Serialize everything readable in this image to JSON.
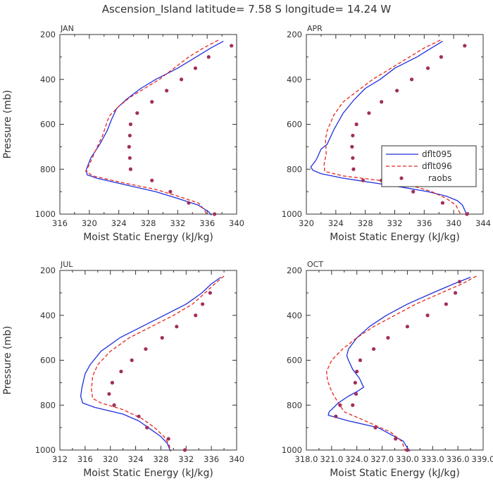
{
  "title": "Ascension_Island  latitude= 7.58 S longitude= 14.24 W",
  "colors": {
    "model1": "#1f2fdd",
    "model2": "#e8261c",
    "obs": "#a0305a",
    "axis": "#333333"
  },
  "chart_data": [
    {
      "type": "line",
      "panel": "JAN",
      "xlabel": "Moist Static Energy (kJ/kg)",
      "ylabel": "Pressure (mb)",
      "xlim": [
        316,
        340
      ],
      "ylim": [
        200,
        1000
      ],
      "xticks": [
        316,
        320,
        324,
        328,
        332,
        336,
        340
      ],
      "xtick_labels": [
        "316",
        "320",
        "324",
        "328",
        "332",
        "336",
        "340"
      ],
      "yticks": [
        200,
        400,
        600,
        800,
        1000
      ],
      "series": [
        {
          "name": "dflt095",
          "style": "solid",
          "x": [
            338.2,
            336.5,
            334.5,
            332.0,
            329.0,
            327.0,
            325.0,
            323.7,
            323.0,
            322.4,
            321.4,
            320.2,
            319.6,
            319.7,
            321.0,
            325.0,
            329.0,
            332.0,
            334.8,
            336.2,
            336.6
          ],
          "y": [
            230,
            260,
            300,
            350,
            400,
            440,
            490,
            530,
            580,
            630,
            690,
            750,
            800,
            825,
            840,
            870,
            900,
            930,
            960,
            990,
            1005
          ]
        },
        {
          "name": "dflt096",
          "style": "dashed",
          "x": [
            337.5,
            335.5,
            333.5,
            331.5,
            329.5,
            327.5,
            325.5,
            324.0,
            322.8,
            322.5,
            321.8,
            320.8,
            320.0,
            319.5,
            320.5,
            324.5,
            329.0,
            332.0,
            334.8,
            335.6,
            336.0
          ],
          "y": [
            225,
            260,
            300,
            350,
            400,
            440,
            480,
            520,
            560,
            580,
            650,
            720,
            780,
            810,
            830,
            860,
            890,
            920,
            950,
            980,
            1005
          ]
        },
        {
          "name": "raobs",
          "style": "markers",
          "x": [
            339.3,
            336.2,
            334.4,
            332.5,
            330.5,
            328.5,
            326.5,
            325.6,
            325.5,
            325.4,
            325.5,
            325.6,
            328.5,
            331.0,
            333.5,
            337.0
          ],
          "y": [
            250,
            300,
            350,
            400,
            450,
            500,
            550,
            600,
            650,
            700,
            750,
            800,
            850,
            900,
            950,
            1000
          ]
        }
      ]
    },
    {
      "type": "line",
      "panel": "APR",
      "xlabel": "Moist Static Energy (kJ/kg)",
      "ylabel": "",
      "xlim": [
        320,
        344
      ],
      "ylim": [
        200,
        1000
      ],
      "xticks": [
        320,
        324,
        328,
        332,
        336,
        340,
        344
      ],
      "xtick_labels": [
        "320",
        "324",
        "328",
        "332",
        "336",
        "340",
        "344"
      ],
      "yticks": [
        200,
        400,
        600,
        800,
        1000
      ],
      "series": [
        {
          "name": "dflt095",
          "style": "solid",
          "x": [
            338.5,
            337.0,
            335.0,
            332.0,
            330.0,
            328.0,
            326.5,
            325.0,
            323.8,
            322.8,
            322.0,
            321.6,
            321.3,
            320.6,
            320.9,
            322.0,
            325.0,
            329.0,
            333.0,
            336.5,
            339.0,
            340.5,
            341.2,
            341.8
          ],
          "y": [
            230,
            260,
            300,
            350,
            400,
            440,
            490,
            550,
            620,
            690,
            710,
            740,
            760,
            790,
            805,
            820,
            840,
            860,
            880,
            900,
            920,
            940,
            960,
            1005
          ]
        },
        {
          "name": "dflt096",
          "style": "dashed",
          "x": [
            338.2,
            336.0,
            334.0,
            331.5,
            329.0,
            327.0,
            325.0,
            323.7,
            322.8,
            322.6,
            322.7,
            322.4,
            322.5,
            325.0,
            330.0,
            334.0,
            337.0,
            339.0,
            340.3,
            341.0
          ],
          "y": [
            225,
            260,
            300,
            350,
            400,
            450,
            500,
            560,
            630,
            670,
            730,
            780,
            810,
            830,
            850,
            870,
            900,
            930,
            960,
            1005
          ]
        },
        {
          "name": "raobs",
          "style": "markers",
          "x": [
            341.5,
            338.3,
            336.5,
            334.3,
            332.3,
            330.2,
            328.5,
            326.8,
            326.3,
            326.2,
            326.3,
            326.4,
            327.7,
            330.2,
            334.5,
            338.5,
            341.8
          ],
          "y": [
            250,
            300,
            350,
            400,
            450,
            500,
            550,
            600,
            650,
            700,
            750,
            800,
            850,
            850,
            900,
            950,
            1000
          ]
        }
      ]
    },
    {
      "type": "line",
      "panel": "JUL",
      "xlabel": "Moist Static Energy (kJ/kg)",
      "ylabel": "Pressure (mb)",
      "xlim": [
        312,
        340
      ],
      "ylim": [
        200,
        1000
      ],
      "xticks": [
        312,
        316,
        320,
        324,
        328,
        332,
        336,
        340
      ],
      "xtick_labels": [
        "312",
        "316",
        "320",
        "324",
        "328",
        "332",
        "336",
        "340"
      ],
      "yticks": [
        200,
        400,
        600,
        800,
        1000
      ],
      "series": [
        {
          "name": "dflt095",
          "style": "solid",
          "x": [
            337.5,
            336.0,
            334.5,
            332.0,
            328.5,
            325.0,
            321.5,
            318.5,
            316.8,
            316.0,
            315.5,
            315.3,
            315.6,
            317.5,
            322.0,
            324.5,
            326.5,
            328.0,
            329.0,
            329.3,
            329.5
          ],
          "y": [
            230,
            260,
            300,
            350,
            400,
            450,
            500,
            560,
            620,
            660,
            720,
            760,
            790,
            810,
            840,
            870,
            910,
            940,
            970,
            990,
            1005
          ]
        },
        {
          "name": "dflt096",
          "style": "dashed",
          "x": [
            338.0,
            336.5,
            335.0,
            333.0,
            330.0,
            326.5,
            323.0,
            320.0,
            318.0,
            317.2,
            317.0,
            317.2,
            318.5,
            322.0,
            325.0,
            327.0,
            328.5,
            329.2,
            329.6
          ],
          "y": [
            225,
            260,
            300,
            350,
            400,
            450,
            500,
            560,
            620,
            670,
            730,
            770,
            790,
            820,
            860,
            900,
            940,
            970,
            1005
          ]
        },
        {
          "name": "raobs",
          "style": "markers",
          "x": [
            335.8,
            334.6,
            333.5,
            330.5,
            328.2,
            325.6,
            323.4,
            321.7,
            320.3,
            319.8,
            320.6,
            324.5,
            325.8,
            329.2,
            331.8
          ],
          "y": [
            300,
            350,
            400,
            450,
            500,
            550,
            600,
            650,
            700,
            750,
            800,
            850,
            900,
            950,
            1000
          ]
        }
      ]
    },
    {
      "type": "line",
      "panel": "OCT",
      "xlabel": "Moist Static Energy (kJ/kg)",
      "ylabel": "",
      "xlim": [
        318.0,
        339.0
      ],
      "ylim": [
        200,
        1000
      ],
      "xticks": [
        318,
        321,
        324,
        327,
        330,
        333,
        336,
        339
      ],
      "xtick_labels": [
        "318.0",
        "321.0",
        "324.0",
        "327.0",
        "330.0",
        "333.0",
        "336.0",
        "339.0"
      ],
      "yticks": [
        200,
        400,
        600,
        800,
        1000
      ],
      "series": [
        {
          "name": "dflt095",
          "style": "solid",
          "x": [
            337.5,
            335.5,
            333.0,
            330.0,
            327.5,
            325.5,
            324.0,
            323.0,
            322.8,
            323.0,
            323.5,
            324.3,
            324.8,
            324.0,
            323.0,
            321.8,
            320.7,
            320.6,
            323.0,
            326.5,
            328.0,
            329.5,
            330.0,
            330.3
          ],
          "y": [
            230,
            260,
            300,
            350,
            400,
            450,
            500,
            550,
            580,
            600,
            640,
            680,
            720,
            740,
            760,
            790,
            830,
            845,
            870,
            900,
            930,
            960,
            990,
            1005
          ]
        },
        {
          "name": "dflt096",
          "style": "dashed",
          "x": [
            338.2,
            336.5,
            334.0,
            331.0,
            328.5,
            326.0,
            324.0,
            322.3,
            321.0,
            320.4,
            320.5,
            321.0,
            321.8,
            322.5,
            325.0,
            328.0,
            329.3,
            329.8
          ],
          "y": [
            225,
            260,
            300,
            350,
            400,
            450,
            500,
            550,
            600,
            650,
            690,
            740,
            790,
            830,
            870,
            920,
            960,
            1005
          ]
        },
        {
          "name": "raobs",
          "style": "markers",
          "x": [
            336.2,
            335.7,
            334.6,
            332.4,
            330.0,
            327.7,
            326.0,
            324.4,
            324.0,
            323.8,
            323.9,
            323.5,
            322.0,
            321.5,
            326.2,
            328.6,
            330.0
          ],
          "y": [
            250,
            300,
            350,
            400,
            450,
            500,
            550,
            600,
            650,
            700,
            750,
            800,
            800,
            850,
            900,
            950,
            1000
          ]
        }
      ]
    }
  ],
  "legend": {
    "entries": [
      "dflt095",
      "dflt096",
      "raobs"
    ],
    "panel": "APR",
    "placement": "right, middle"
  }
}
